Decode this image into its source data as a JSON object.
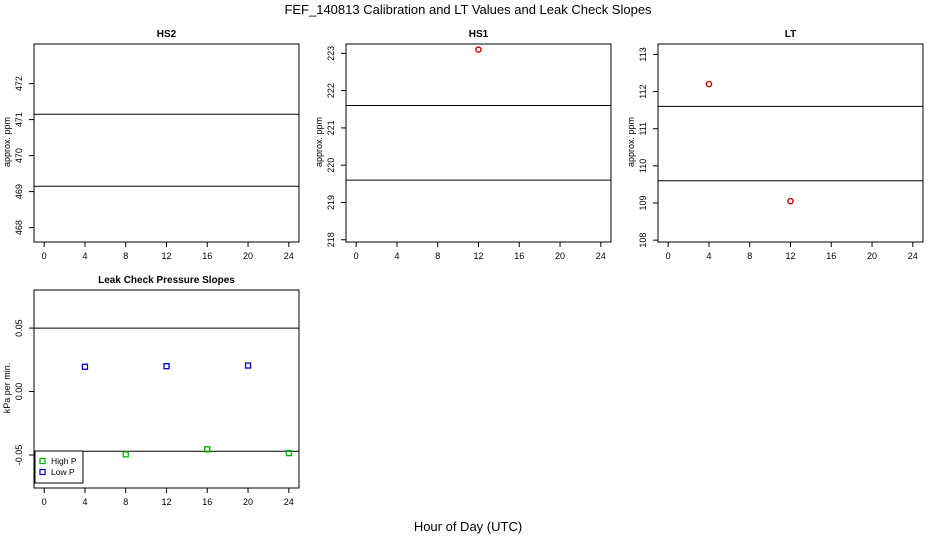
{
  "figure": {
    "title": "FEF_140813  Calibration and LT Values and Leak Check Slopes",
    "xlabel": "Hour of Day (UTC)"
  },
  "chart_data": [
    {
      "type": "scatter",
      "title": "HS2",
      "ylabel": "approx. ppm",
      "xlim": [
        -1,
        25
      ],
      "ylim": [
        467.6,
        473.1
      ],
      "xticks": [
        0,
        4,
        8,
        12,
        16,
        20,
        24
      ],
      "xtick_labels": [
        "0",
        "4",
        "8",
        "12",
        "16",
        "20",
        "24"
      ],
      "yticks": [
        468,
        469,
        470,
        471,
        472
      ],
      "ytick_labels": [
        "468",
        "469",
        "470",
        "471",
        "472"
      ],
      "hlines": [
        471.15,
        469.15
      ],
      "series": [
        {
          "name": "HS2",
          "color": "#d00000",
          "marker": "circle",
          "x": [],
          "y": []
        }
      ]
    },
    {
      "type": "scatter",
      "title": "HS1",
      "ylabel": "approx. ppm",
      "xlim": [
        -1,
        25
      ],
      "ylim": [
        217.94,
        223.25
      ],
      "xticks": [
        0,
        4,
        8,
        12,
        16,
        20,
        24
      ],
      "xtick_labels": [
        "0",
        "4",
        "8",
        "12",
        "16",
        "20",
        "24"
      ],
      "yticks": [
        218,
        219,
        220,
        221,
        222,
        223
      ],
      "ytick_labels": [
        "218",
        "219",
        "220",
        "221",
        "222",
        "223"
      ],
      "hlines": [
        221.6,
        219.6
      ],
      "series": [
        {
          "name": "HS1",
          "color": "#d00000",
          "marker": "circle",
          "x": [
            12
          ],
          "y": [
            223.1
          ]
        }
      ]
    },
    {
      "type": "scatter",
      "title": "LT",
      "ylabel": "approx. ppm",
      "xlim": [
        -1,
        25
      ],
      "ylim": [
        107.95,
        113.28
      ],
      "xticks": [
        0,
        4,
        8,
        12,
        16,
        20,
        24
      ],
      "xtick_labels": [
        "0",
        "4",
        "8",
        "12",
        "16",
        "20",
        "24"
      ],
      "yticks": [
        108,
        109,
        110,
        111,
        112,
        113
      ],
      "ytick_labels": [
        "108",
        "109",
        "110",
        "111",
        "112",
        "113"
      ],
      "hlines": [
        111.6,
        109.6
      ],
      "series": [
        {
          "name": "LT",
          "color": "#d00000",
          "marker": "circle",
          "x": [
            4,
            12
          ],
          "y": [
            112.2,
            109.05
          ]
        }
      ]
    },
    {
      "type": "scatter",
      "title": "Leak Check Pressure Slopes",
      "ylabel": "kPa per min.",
      "xlim": [
        -1,
        25
      ],
      "ylim": [
        -0.076,
        0.08
      ],
      "xticks": [
        0,
        4,
        8,
        12,
        16,
        20,
        24
      ],
      "xtick_labels": [
        "0",
        "4",
        "8",
        "12",
        "16",
        "20",
        "24"
      ],
      "yticks": [
        -0.05,
        0.0,
        0.05
      ],
      "ytick_labels": [
        "-0.05",
        "0.00",
        "0.05"
      ],
      "hlines": [
        0.05,
        -0.047
      ],
      "legend": "bottom-left",
      "series": [
        {
          "name": "High P",
          "color": "#00b000",
          "marker": "square",
          "x": [
            8,
            16,
            24
          ],
          "y": [
            -0.0495,
            -0.0455,
            -0.0485
          ]
        },
        {
          "name": "Low P",
          "color": "#0000c8",
          "marker": "square",
          "x": [
            4,
            12,
            20
          ],
          "y": [
            0.0195,
            0.02,
            0.0205
          ]
        }
      ]
    }
  ]
}
